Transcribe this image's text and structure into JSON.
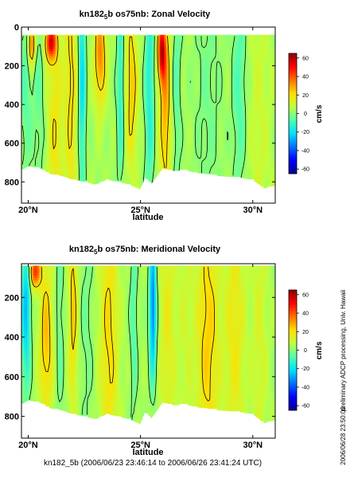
{
  "footer_text": "kn182_5b (2006/06/23 23:46:14 to 2006/06/26 23:41:24 UTC)",
  "side_note_1": "preliminary ADCP processing,  Univ. Hawaii",
  "side_note_2": "2006/06/28 23:50:00",
  "colormap": [
    "#00008f",
    "#0000ff",
    "#006fff",
    "#00dfff",
    "#4fffaf",
    "#bfff3f",
    "#ffdf00",
    "#ff6f00",
    "#ff0000",
    "#8f0000"
  ],
  "chart_data": [
    {
      "type": "heatmap",
      "title_parts": [
        "kn182",
        "5",
        "b os75nb: Zonal Velocity"
      ],
      "xlabel": "latitude",
      "x_ticks": [
        "20°N",
        "25°N",
        "30°N"
      ],
      "x_tick_values": [
        20,
        25,
        30
      ],
      "xlim": [
        19.7,
        31.0
      ],
      "ylabel": "",
      "y_ticks": [
        "0",
        "200",
        "400",
        "600",
        "800"
      ],
      "y_tick_values": [
        0,
        200,
        400,
        600,
        800
      ],
      "ylim": [
        910,
        0
      ],
      "colorbar_label": "cm/s",
      "colorbar_ticks": [
        "60",
        "40",
        "20",
        "0",
        "-20",
        "-40",
        "-60"
      ],
      "colorbar_tick_values": [
        60,
        40,
        20,
        0,
        -20,
        -40,
        -60
      ],
      "clim": [
        -65,
        65
      ],
      "data_depth_top_m": 40,
      "bottom_depth_m": [
        [
          19.7,
          740
        ],
        [
          20.0,
          720
        ],
        [
          20.5,
          730
        ],
        [
          21.0,
          760
        ],
        [
          21.5,
          770
        ],
        [
          22.0,
          790
        ],
        [
          22.5,
          800
        ],
        [
          23.0,
          815
        ],
        [
          23.5,
          790
        ],
        [
          24.0,
          800
        ],
        [
          24.5,
          815
        ],
        [
          25.0,
          840
        ],
        [
          25.2,
          780
        ],
        [
          25.5,
          810
        ],
        [
          25.8,
          760
        ],
        [
          26.0,
          730
        ],
        [
          26.5,
          745
        ],
        [
          27.0,
          740
        ],
        [
          27.5,
          755
        ],
        [
          28.0,
          760
        ],
        [
          28.5,
          770
        ],
        [
          29.0,
          775
        ],
        [
          29.5,
          780
        ],
        [
          30.0,
          790
        ],
        [
          30.5,
          835
        ],
        [
          31.0,
          820
        ]
      ],
      "features": [
        {
          "lat": 19.9,
          "depth": 300,
          "lat_width": 0.3,
          "depth_width": 500,
          "value": -10
        },
        {
          "lat": 20.15,
          "depth": 90,
          "lat_width": 0.15,
          "depth_width": 110,
          "value": 35
        },
        {
          "lat": 20.5,
          "depth": 350,
          "lat_width": 0.25,
          "depth_width": 600,
          "value": -8
        },
        {
          "lat": 21.0,
          "depth": 80,
          "lat_width": 0.25,
          "depth_width": 90,
          "value": 45
        },
        {
          "lat": 21.2,
          "depth": 500,
          "lat_width": 0.35,
          "depth_width": 600,
          "value": 15
        },
        {
          "lat": 21.9,
          "depth": 300,
          "lat_width": 0.25,
          "depth_width": 700,
          "value": 18
        },
        {
          "lat": 22.4,
          "depth": 250,
          "lat_width": 0.15,
          "depth_width": 600,
          "value": -25
        },
        {
          "lat": 23.2,
          "depth": 150,
          "lat_width": 0.25,
          "depth_width": 250,
          "value": 30
        },
        {
          "lat": 24.1,
          "depth": 300,
          "lat_width": 0.15,
          "depth_width": 500,
          "value": -18
        },
        {
          "lat": 24.6,
          "depth": 300,
          "lat_width": 0.25,
          "depth_width": 400,
          "value": 22
        },
        {
          "lat": 25.4,
          "depth": 300,
          "lat_width": 0.2,
          "depth_width": 600,
          "value": -20
        },
        {
          "lat": 25.95,
          "depth": 130,
          "lat_width": 0.18,
          "depth_width": 150,
          "value": 45
        },
        {
          "lat": 26.1,
          "depth": 400,
          "lat_width": 0.25,
          "depth_width": 500,
          "value": 25
        },
        {
          "lat": 26.6,
          "depth": 250,
          "lat_width": 0.2,
          "depth_width": 700,
          "value": -10
        },
        {
          "lat": 28.0,
          "depth": 350,
          "lat_width": 0.6,
          "depth_width": 800,
          "value": -6
        },
        {
          "lat": 29.4,
          "depth": 300,
          "lat_width": 0.3,
          "depth_width": 600,
          "value": -12
        },
        {
          "lat": 30.3,
          "depth": 500,
          "lat_width": 0.5,
          "depth_width": 800,
          "value": 6
        }
      ]
    },
    {
      "type": "heatmap",
      "title_parts": [
        "kn182",
        "5",
        "b os75nb: Meridional Velocity"
      ],
      "xlabel": "latitude",
      "x_ticks": [
        "20°N",
        "25°N",
        "30°N"
      ],
      "x_tick_values": [
        20,
        25,
        30
      ],
      "xlim": [
        19.7,
        31.0
      ],
      "ylabel": "",
      "y_ticks": [
        "200",
        "400",
        "600",
        "800"
      ],
      "y_tick_values": [
        200,
        400,
        600,
        800
      ],
      "ylim": [
        910,
        30
      ],
      "colorbar_label": "cm/s",
      "colorbar_ticks": [
        "60",
        "40",
        "20",
        "0",
        "-20",
        "-40",
        "-60"
      ],
      "colorbar_tick_values": [
        60,
        40,
        20,
        0,
        -20,
        -40,
        -60
      ],
      "clim": [
        -65,
        65
      ],
      "data_depth_top_m": 40,
      "bottom_depth_m": [
        [
          19.7,
          740
        ],
        [
          20.0,
          720
        ],
        [
          20.5,
          730
        ],
        [
          21.0,
          760
        ],
        [
          21.5,
          770
        ],
        [
          22.0,
          790
        ],
        [
          22.5,
          800
        ],
        [
          23.0,
          815
        ],
        [
          23.5,
          790
        ],
        [
          24.0,
          800
        ],
        [
          24.5,
          815
        ],
        [
          25.0,
          840
        ],
        [
          25.2,
          780
        ],
        [
          25.5,
          810
        ],
        [
          25.8,
          760
        ],
        [
          26.0,
          730
        ],
        [
          26.5,
          745
        ],
        [
          27.0,
          740
        ],
        [
          27.5,
          755
        ],
        [
          28.0,
          760
        ],
        [
          28.5,
          770
        ],
        [
          29.0,
          775
        ],
        [
          29.5,
          780
        ],
        [
          30.0,
          790
        ],
        [
          30.5,
          835
        ],
        [
          31.0,
          820
        ]
      ],
      "features": [
        {
          "lat": 19.9,
          "depth": 250,
          "lat_width": 0.2,
          "depth_width": 400,
          "value": -30
        },
        {
          "lat": 20.3,
          "depth": 70,
          "lat_width": 0.25,
          "depth_width": 80,
          "value": 40
        },
        {
          "lat": 20.8,
          "depth": 420,
          "lat_width": 0.3,
          "depth_width": 400,
          "value": 22
        },
        {
          "lat": 21.4,
          "depth": 300,
          "lat_width": 0.2,
          "depth_width": 600,
          "value": -8
        },
        {
          "lat": 22.0,
          "depth": 250,
          "lat_width": 0.2,
          "depth_width": 500,
          "value": 20
        },
        {
          "lat": 22.6,
          "depth": 300,
          "lat_width": 0.3,
          "depth_width": 700,
          "value": -6
        },
        {
          "lat": 23.6,
          "depth": 400,
          "lat_width": 0.4,
          "depth_width": 700,
          "value": 18
        },
        {
          "lat": 24.7,
          "depth": 300,
          "lat_width": 0.15,
          "depth_width": 500,
          "value": -12
        },
        {
          "lat": 25.55,
          "depth": 250,
          "lat_width": 0.15,
          "depth_width": 350,
          "value": -40
        },
        {
          "lat": 26.2,
          "depth": 350,
          "lat_width": 0.35,
          "depth_width": 700,
          "value": 12
        },
        {
          "lat": 27.0,
          "depth": 300,
          "lat_width": 0.35,
          "depth_width": 700,
          "value": 6
        },
        {
          "lat": 28.0,
          "depth": 400,
          "lat_width": 0.5,
          "depth_width": 700,
          "value": 20
        },
        {
          "lat": 29.2,
          "depth": 350,
          "lat_width": 0.45,
          "depth_width": 700,
          "value": 14
        },
        {
          "lat": 30.3,
          "depth": 400,
          "lat_width": 0.35,
          "depth_width": 800,
          "value": 8
        }
      ]
    }
  ]
}
